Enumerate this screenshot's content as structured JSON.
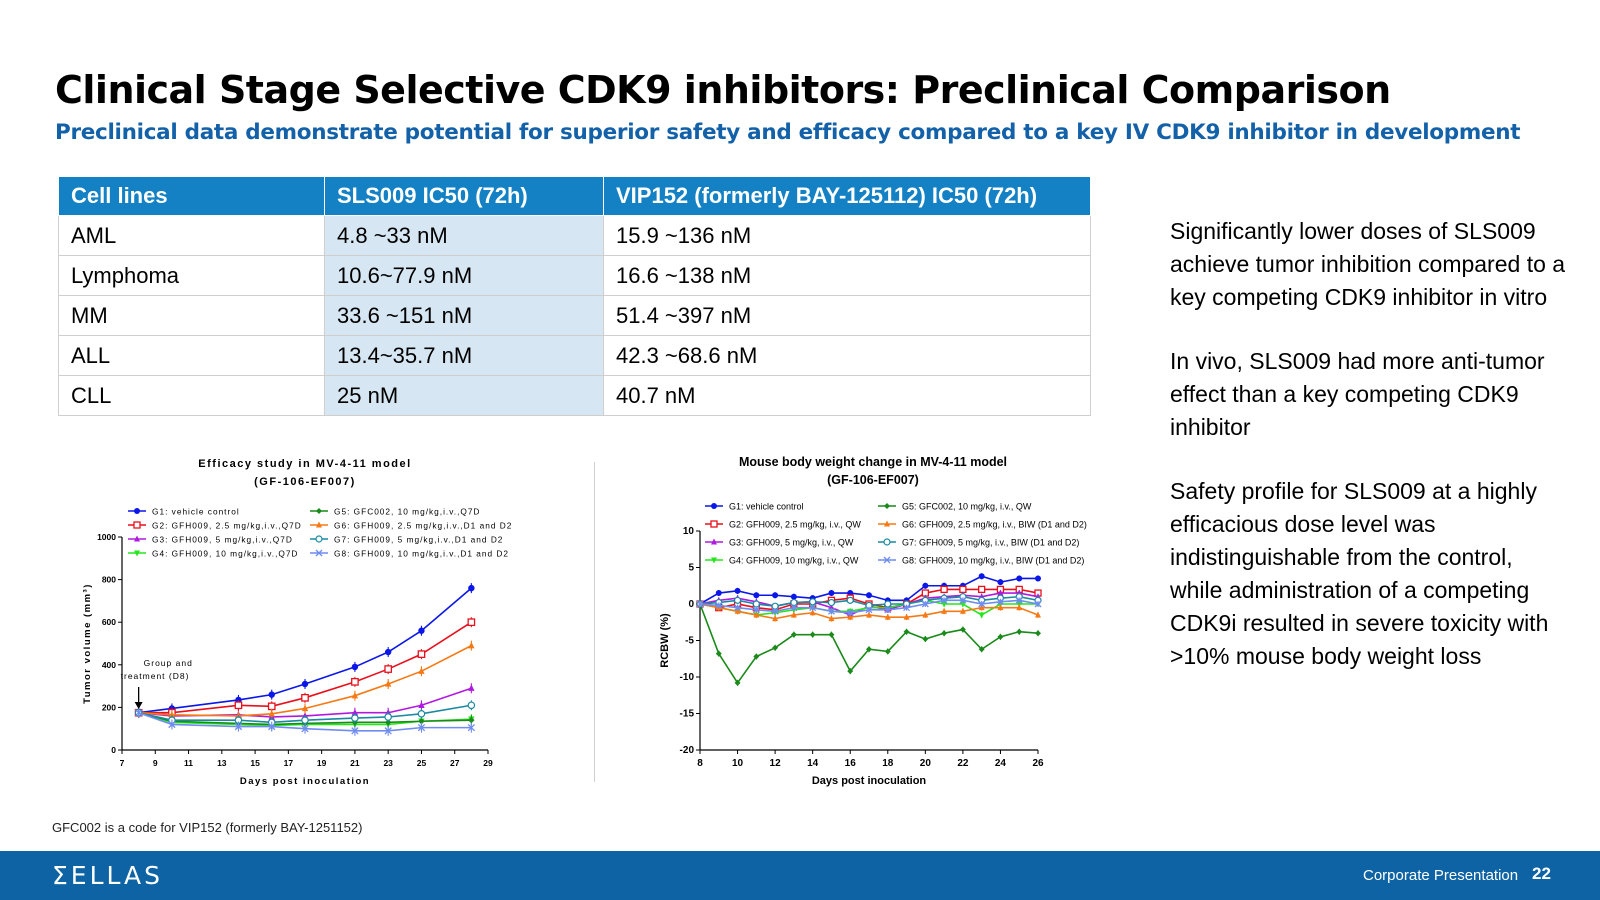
{
  "header": {
    "title": "Clinical Stage Selective CDK9 inhibitors: Preclinical Comparison",
    "subtitle": "Preclinical data demonstrate potential for superior safety and efficacy compared to a key IV CDK9 inhibitor in development"
  },
  "table": {
    "headers": [
      "Cell lines",
      "SLS009 IC50 (72h)",
      "VIP152 (formerly BAY-125112) IC50 (72h)"
    ],
    "rows": [
      [
        "AML",
        "4.8 ~33 nM",
        "15.9 ~136 nM"
      ],
      [
        "Lymphoma",
        "10.6~77.9 nM",
        "16.6 ~138 nM"
      ],
      [
        "MM",
        "33.6 ~151 nM",
        "51.4 ~397 nM"
      ],
      [
        "ALL",
        "13.4~35.7 nM",
        "42.3 ~68.6 nM"
      ],
      [
        "CLL",
        "25 nM",
        "40.7 nM"
      ]
    ],
    "colors": {
      "header_bg": "#1481c4",
      "highlight_bg": "#d6e6f3"
    }
  },
  "bullets": [
    "Significantly lower doses of SLS009 achieve tumor inhibition compared to a key competing CDK9 inhibitor in vitro",
    "In vivo, SLS009 had more anti-tumor effect than a key competing CDK9 inhibitor",
    "Safety profile for SLS009 at a highly efficacious dose level was indistinguishable from the control, while administration of a competing CDK9i resulted in severe toxicity with >10% mouse body weight loss"
  ],
  "footnote": "GFC002 is a code for VIP152 (formerly BAY-1251152)",
  "footer": {
    "logo": "ΣELLAS",
    "label": "Corporate Presentation",
    "page": "22",
    "bg": "#0e63a4"
  },
  "chart_data": [
    {
      "type": "line",
      "title": "Efficacy study in MV-4-11 model",
      "subtitle": "(GF-106-EF007)",
      "xlabel": "Days post inoculation",
      "ylabel": "Tumor volume (mm³)",
      "xlim": [
        7,
        29
      ],
      "ylim": [
        0,
        1000
      ],
      "xticks": [
        "7",
        "9",
        "11",
        "13",
        "15",
        "17",
        "19",
        "21",
        "23",
        "25",
        "27",
        "29"
      ],
      "yticks": [
        "0",
        "200",
        "400",
        "600",
        "800",
        "1000"
      ],
      "annotation": [
        "Group and",
        "treatment (D8)"
      ],
      "annotation_x": 8,
      "legend_position": "top",
      "x": [
        8,
        10,
        14,
        16,
        18,
        21,
        23,
        25,
        28
      ],
      "series": [
        {
          "name": "G1: vehicle control",
          "color": "#0b17e8",
          "marker": "circle",
          "values": [
            175,
            195,
            235,
            260,
            310,
            390,
            460,
            560,
            760
          ]
        },
        {
          "name": "G2: GFH009, 2.5 mg/kg,i.v.,Q7D",
          "color": "#e8101c",
          "marker": "square",
          "values": [
            175,
            175,
            210,
            205,
            245,
            320,
            380,
            450,
            600
          ]
        },
        {
          "name": "G3: GFH009, 5 mg/kg,i.v.,Q7D",
          "color": "#b01ae0",
          "marker": "triangle",
          "values": [
            175,
            160,
            165,
            155,
            160,
            175,
            175,
            210,
            290
          ]
        },
        {
          "name": "G4: GFH009, 10 mg/kg,i.v.,Q7D",
          "color": "#27e61e",
          "marker": "triangle-down",
          "values": [
            175,
            130,
            120,
            115,
            120,
            120,
            120,
            135,
            145
          ]
        },
        {
          "name": "G5: GFC002, 10 mg/kg,i.v.,Q7D",
          "color": "#1a8a1a",
          "marker": "diamond",
          "values": [
            175,
            135,
            125,
            120,
            125,
            130,
            130,
            135,
            140
          ]
        },
        {
          "name": "G6: GFH009, 2.5 mg/kg,i.v.,D1 and D2",
          "color": "#f57a16",
          "marker": "triangle",
          "values": [
            175,
            165,
            160,
            170,
            195,
            255,
            310,
            370,
            490
          ]
        },
        {
          "name": "G7: GFH009, 5 mg/kg,i.v.,D1 and D2",
          "color": "#1a8aa0",
          "marker": "circle-open",
          "values": [
            175,
            140,
            140,
            130,
            140,
            150,
            155,
            170,
            210
          ]
        },
        {
          "name": "G8: GFH009, 10 mg/kg,i.v.,D1 and D2",
          "color": "#6f8cf0",
          "marker": "cross",
          "values": [
            175,
            120,
            110,
            110,
            100,
            90,
            90,
            105,
            105
          ]
        }
      ]
    },
    {
      "type": "line",
      "title": "Mouse body weight change in MV-4-11 model",
      "subtitle": "(GF-106-EF007)",
      "xlabel": "Days post inoculation",
      "ylabel": "RCBW (%)",
      "xlim": [
        8,
        26
      ],
      "ylim": [
        -20,
        10
      ],
      "xticks": [
        "8",
        "10",
        "12",
        "14",
        "16",
        "18",
        "20",
        "22",
        "24",
        "26"
      ],
      "yticks": [
        "-20",
        "-15",
        "-10",
        "-5",
        "0",
        "5",
        "10"
      ],
      "legend_position": "top",
      "x": [
        8,
        9,
        10,
        11,
        12,
        13,
        14,
        15,
        16,
        17,
        18,
        19,
        20,
        21,
        22,
        23,
        24,
        25,
        26
      ],
      "series": [
        {
          "name": "G1: vehicle control",
          "color": "#0b17e8",
          "marker": "circle",
          "values": [
            0,
            1.5,
            1.8,
            1.2,
            1.2,
            1.0,
            0.8,
            1.5,
            1.5,
            1.2,
            0.5,
            0.5,
            2.5,
            2.5,
            2.5,
            3.8,
            3.0,
            3.5,
            3.5
          ]
        },
        {
          "name": "G2: GFH009, 2.5 mg/kg, i.v., QW",
          "color": "#e8101c",
          "marker": "square",
          "values": [
            0,
            -0.5,
            0,
            -0.5,
            -0.8,
            0,
            0,
            0.5,
            0.8,
            0,
            -0.5,
            0,
            1.5,
            2.0,
            2.0,
            2.0,
            2.0,
            2.0,
            1.5
          ]
        },
        {
          "name": "G3: GFH009, 5 mg/kg, i.v., QW",
          "color": "#b01ae0",
          "marker": "triangle",
          "values": [
            0,
            0.5,
            0.8,
            0.3,
            -0.3,
            0.2,
            0.3,
            -0.5,
            -1.5,
            -0.3,
            -0.8,
            0,
            0.8,
            1.0,
            1.2,
            1.0,
            1.5,
            1.5,
            1.0
          ]
        },
        {
          "name": "G4: GFH009, 10 mg/kg, i.v., QW",
          "color": "#27e61e",
          "marker": "triangle-down",
          "values": [
            0,
            -0.5,
            -1.0,
            -1.5,
            -1.2,
            -0.8,
            -0.5,
            -1.0,
            -1.0,
            -0.5,
            -0.5,
            0,
            0.5,
            0,
            0,
            -1.5,
            0,
            0,
            0
          ]
        },
        {
          "name": "G5: GFC002, 10 mg/kg, i.v., QW",
          "color": "#1a8a1a",
          "marker": "diamond",
          "values": [
            0,
            -6.8,
            -10.8,
            -7.2,
            -6.0,
            -4.2,
            -4.2,
            -4.2,
            -9.2,
            -6.2,
            -6.5,
            -3.8,
            -4.8,
            -4.0,
            -3.5,
            -6.2,
            -4.5,
            -3.8,
            -4.0
          ]
        },
        {
          "name": "G6: GFH009, 2.5 mg/kg, i.v., BIW (D1 and D2)",
          "color": "#f57a16",
          "marker": "triangle",
          "values": [
            0,
            -0.5,
            -1.0,
            -1.5,
            -2.0,
            -1.5,
            -1.2,
            -2.0,
            -1.8,
            -1.5,
            -1.8,
            -1.8,
            -1.5,
            -1.0,
            -1.0,
            -0.5,
            -0.5,
            -0.5,
            -1.5
          ]
        },
        {
          "name": "G7: GFH009, 5 mg/kg, i.v., BIW (D1 and D2)",
          "color": "#1a8aa0",
          "marker": "circle-open",
          "values": [
            0,
            0.2,
            0.5,
            0,
            -0.3,
            0.2,
            0.3,
            0.2,
            0.5,
            -0.2,
            0,
            0,
            0.5,
            0.8,
            1.0,
            0.5,
            0.8,
            1.0,
            0.5
          ]
        },
        {
          "name": "G8: GFH009, 10 mg/kg, i.v., BIW (D1 and D2)",
          "color": "#6f8cf0",
          "marker": "cross",
          "values": [
            0,
            -0.2,
            -0.5,
            -0.8,
            -1.0,
            -0.5,
            -0.5,
            -1.0,
            -1.2,
            -0.8,
            -0.8,
            -0.5,
            0,
            0.5,
            0.5,
            0,
            0.3,
            0.5,
            0
          ]
        }
      ]
    }
  ]
}
